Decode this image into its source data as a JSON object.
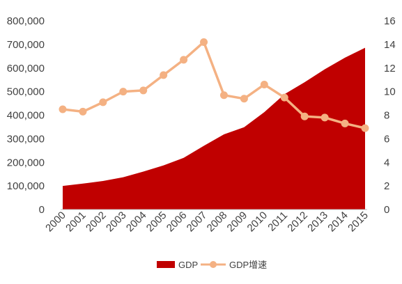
{
  "chart_data": {
    "type": "area+line",
    "title": "",
    "categories": [
      "2000",
      "2001",
      "2002",
      "2003",
      "2004",
      "2005",
      "2006",
      "2007",
      "2008",
      "2009",
      "2010",
      "2011",
      "2012",
      "2013",
      "2014",
      "2015"
    ],
    "series": [
      {
        "name": "GDP",
        "type": "area",
        "axis": "left",
        "color": "#c00000",
        "values": [
          100000,
          110000,
          121000,
          137000,
          161000,
          187000,
          219000,
          270000,
          319000,
          349000,
          413000,
          489000,
          540000,
          595000,
          644000,
          686000
        ]
      },
      {
        "name": "GDP增速",
        "type": "line",
        "axis": "right",
        "color": "#f4b183",
        "marker": "circle",
        "values": [
          8.5,
          8.3,
          9.1,
          10.0,
          10.1,
          11.4,
          12.7,
          14.2,
          9.7,
          9.4,
          10.6,
          9.5,
          7.9,
          7.8,
          7.3,
          6.9
        ]
      }
    ],
    "y_left": {
      "ylim": [
        0,
        800000
      ],
      "ticks": [
        "0",
        "100,000",
        "200,000",
        "300,000",
        "400,000",
        "500,000",
        "600,000",
        "700,000",
        "800,000"
      ]
    },
    "y_right": {
      "ylim": [
        0,
        16
      ],
      "ticks": [
        "0",
        "2",
        "4",
        "6",
        "8",
        "10",
        "12",
        "14",
        "16"
      ]
    },
    "x_ticks_rotated": true,
    "grid": false,
    "legend": {
      "position": "bottom",
      "entries": [
        "GDP",
        "GDP增速"
      ]
    }
  }
}
